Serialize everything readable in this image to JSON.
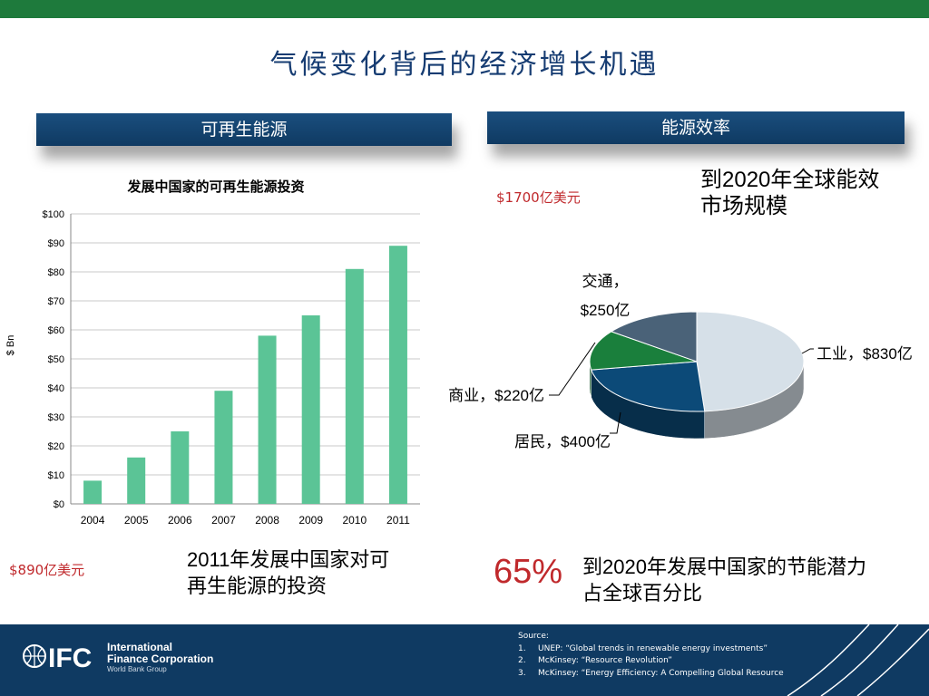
{
  "title": "气候变化背后的经济增长机遇",
  "left_section": {
    "header": "可再生能源",
    "amount": "$890亿美元",
    "caption_line1": "2011年发展中国家对可",
    "caption_line2": "再生能源的投资"
  },
  "right_section": {
    "header": "能源效率",
    "amount": "$1700亿美元",
    "market_line1": "到2020年全球能效",
    "market_line2": "市场规模",
    "percent": "65%",
    "percent_line1": "到2020年发展中国家的节能潜力",
    "percent_line2": "占全球百分比"
  },
  "footer": {
    "logo_mark": "IFC",
    "logo_line1": "International",
    "logo_line2": "Finance Corporation",
    "logo_line3": "World Bank Group",
    "source_title": "Source:",
    "sources": [
      {
        "num": "1.",
        "text": "UNEP: “Global trends in renewable energy investments”"
      },
      {
        "num": "2.",
        "text": "McKinsey: “Resource Revolution”"
      },
      {
        "num": "3.",
        "text": "McKinsey: “Energy Efficiency: A Compelling Global Resource"
      }
    ]
  },
  "colors": {
    "bar": "#5bc496",
    "accent_red": "#c0292c",
    "navy": "#0f3a62",
    "green": "#1e7a3c"
  },
  "chart_data": [
    {
      "type": "bar",
      "title": "发展中国家的可再生能源投资",
      "ylabel": "$ Bn",
      "xlabel": "",
      "categories": [
        "2004",
        "2005",
        "2006",
        "2007",
        "2008",
        "2009",
        "2010",
        "2011"
      ],
      "values": [
        8,
        16,
        25,
        39,
        58,
        65,
        81,
        89
      ],
      "ylim": [
        0,
        100
      ],
      "yticks": [
        "$0",
        "$10",
        "$20",
        "$30",
        "$40",
        "$50",
        "$60",
        "$70",
        "$80",
        "$90",
        "$100"
      ],
      "grid": true
    },
    {
      "type": "pie",
      "slices": [
        {
          "label": "工业，$830亿",
          "value": 830,
          "color": "#d6e0e8"
        },
        {
          "label": "居民，$400亿",
          "value": 400,
          "color": "#0c4a78"
        },
        {
          "label": "商业，$220亿",
          "value": 220,
          "color": "#1a7f3c"
        },
        {
          "label_line1": "交通，",
          "label_line2": "$250亿",
          "value": 250,
          "color": "#4a6278"
        }
      ]
    }
  ]
}
